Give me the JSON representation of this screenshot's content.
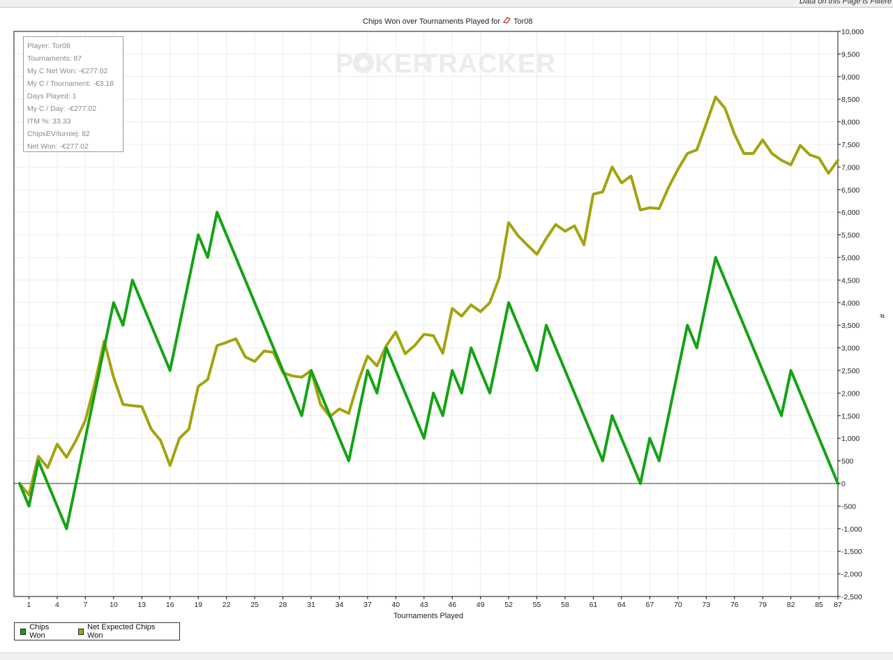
{
  "filter_note": "Data on this Page is Filtere",
  "stats": [
    "Player: Tor08",
    "Tournaments: 87",
    "My C Net Won: -€277.02",
    "My C / Tournament: -€3.18",
    "Days Played: 1",
    "My C / Day: -€277.02",
    "ITM %: 33.33",
    "ChipsEV/turniej: 82",
    "Net Won: -€277.02"
  ],
  "watermark": {
    "left": "P",
    "chip": "O",
    "mid": "KER",
    "right": "TRACKER"
  },
  "colors": {
    "chips_won": "#14a314",
    "net_expected": "#a3a30f",
    "grid": "#ececec"
  },
  "chart_data": {
    "type": "line",
    "title": "Chips Won over Tournaments Played for",
    "player": "Tor08",
    "player_icon": "site-icon",
    "xlabel": "Tournaments Played",
    "ylabel": "#",
    "xlim": [
      0,
      87
    ],
    "ylim": [
      -2500,
      10000
    ],
    "x_ticks": [
      1,
      4,
      7,
      10,
      13,
      16,
      19,
      22,
      25,
      28,
      31,
      34,
      37,
      40,
      43,
      46,
      49,
      52,
      55,
      58,
      61,
      64,
      67,
      70,
      73,
      76,
      79,
      82,
      85,
      87
    ],
    "y_ticks": [
      10000,
      9500,
      9000,
      8500,
      8000,
      7500,
      7000,
      6500,
      6000,
      5500,
      5000,
      4500,
      4000,
      3500,
      3000,
      2500,
      2000,
      1500,
      1000,
      500,
      0,
      -500,
      -1000,
      -1500,
      -2000,
      -2500
    ],
    "y_tick_labels": [
      "10,000",
      "9,500",
      "9,000",
      "8,500",
      "8,000",
      "7,500",
      "7,000",
      "6,500",
      "6,000",
      "5,500",
      "5,000",
      "4,500",
      "4,000",
      "3,500",
      "3,000",
      "2,500",
      "2,000",
      "1,500",
      "1,000",
      "500",
      "0",
      "-500",
      "-1,000",
      "-1,500",
      "-2,000",
      "-2,500"
    ],
    "grid": true,
    "legend_position": "bottom-left",
    "series": [
      {
        "name": "Chips Won",
        "points": [
          [
            0,
            0
          ],
          [
            1,
            -500
          ],
          [
            2,
            500
          ],
          [
            5,
            -1000
          ],
          [
            10,
            4000
          ],
          [
            11,
            3500
          ],
          [
            12,
            4500
          ],
          [
            16,
            2500
          ],
          [
            19,
            5500
          ],
          [
            20,
            5000
          ],
          [
            21,
            6000
          ],
          [
            30,
            1500
          ],
          [
            31,
            2500
          ],
          [
            35,
            500
          ],
          [
            37,
            2500
          ],
          [
            38,
            2000
          ],
          [
            39,
            3000
          ],
          [
            43,
            1000
          ],
          [
            44,
            2000
          ],
          [
            45,
            1500
          ],
          [
            46,
            2500
          ],
          [
            47,
            2000
          ],
          [
            48,
            3000
          ],
          [
            50,
            2000
          ],
          [
            52,
            4000
          ],
          [
            55,
            2500
          ],
          [
            56,
            3500
          ],
          [
            62,
            500
          ],
          [
            63,
            1500
          ],
          [
            66,
            0
          ],
          [
            67,
            1000
          ],
          [
            68,
            500
          ],
          [
            71,
            3500
          ],
          [
            72,
            3000
          ],
          [
            74,
            5000
          ],
          [
            81,
            1500
          ],
          [
            82,
            2500
          ],
          [
            87,
            0
          ]
        ]
      },
      {
        "name": "Net Expected Chips Won",
        "points": [
          [
            0,
            0
          ],
          [
            1,
            -250
          ],
          [
            2,
            600
          ],
          [
            3,
            350
          ],
          [
            4,
            870
          ],
          [
            5,
            580
          ],
          [
            6,
            950
          ],
          [
            7,
            1400
          ],
          [
            8,
            2200
          ],
          [
            9,
            3150
          ],
          [
            10,
            2350
          ],
          [
            11,
            1750
          ],
          [
            12,
            1720
          ],
          [
            13,
            1700
          ],
          [
            14,
            1200
          ],
          [
            15,
            950
          ],
          [
            16,
            400
          ],
          [
            17,
            1000
          ],
          [
            18,
            1200
          ],
          [
            19,
            2150
          ],
          [
            20,
            2300
          ],
          [
            21,
            3050
          ],
          [
            22,
            3120
          ],
          [
            23,
            3200
          ],
          [
            24,
            2800
          ],
          [
            25,
            2700
          ],
          [
            26,
            2930
          ],
          [
            27,
            2900
          ],
          [
            28,
            2450
          ],
          [
            29,
            2380
          ],
          [
            30,
            2350
          ],
          [
            31,
            2500
          ],
          [
            32,
            1750
          ],
          [
            33,
            1480
          ],
          [
            34,
            1650
          ],
          [
            35,
            1550
          ],
          [
            36,
            2250
          ],
          [
            37,
            2820
          ],
          [
            38,
            2600
          ],
          [
            39,
            3050
          ],
          [
            40,
            3350
          ],
          [
            41,
            2870
          ],
          [
            42,
            3050
          ],
          [
            43,
            3300
          ],
          [
            44,
            3270
          ],
          [
            45,
            2880
          ],
          [
            46,
            3870
          ],
          [
            47,
            3700
          ],
          [
            48,
            3950
          ],
          [
            49,
            3800
          ],
          [
            50,
            4000
          ],
          [
            51,
            4550
          ],
          [
            52,
            5770
          ],
          [
            53,
            5480
          ],
          [
            54,
            5270
          ],
          [
            55,
            5070
          ],
          [
            56,
            5420
          ],
          [
            57,
            5730
          ],
          [
            58,
            5580
          ],
          [
            59,
            5700
          ],
          [
            60,
            5280
          ],
          [
            61,
            6400
          ],
          [
            62,
            6450
          ],
          [
            63,
            7000
          ],
          [
            64,
            6650
          ],
          [
            65,
            6800
          ],
          [
            66,
            6050
          ],
          [
            67,
            6100
          ],
          [
            68,
            6080
          ],
          [
            69,
            6550
          ],
          [
            70,
            6950
          ],
          [
            71,
            7300
          ],
          [
            72,
            7380
          ],
          [
            73,
            7950
          ],
          [
            74,
            8550
          ],
          [
            75,
            8300
          ],
          [
            76,
            7730
          ],
          [
            77,
            7300
          ],
          [
            78,
            7300
          ],
          [
            79,
            7600
          ],
          [
            80,
            7300
          ],
          [
            81,
            7150
          ],
          [
            82,
            7050
          ],
          [
            83,
            7480
          ],
          [
            84,
            7270
          ],
          [
            85,
            7200
          ],
          [
            86,
            6860
          ],
          [
            87,
            7150
          ]
        ]
      }
    ]
  }
}
